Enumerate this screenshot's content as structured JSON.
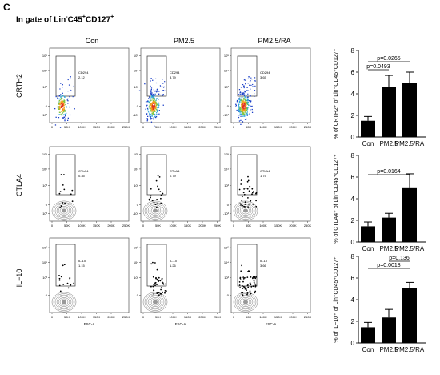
{
  "figure": {
    "panel_letter": "C",
    "gate_title_prefix": "In gate of Lin",
    "gate_title_sup1": "-",
    "gate_title_mid": "C45",
    "gate_title_sup2": "+",
    "gate_title_mid2": "CD127",
    "gate_title_sup3": "+"
  },
  "flow": {
    "columns": [
      "Con",
      "PM2.5",
      "PM2.5/RA"
    ],
    "rows": [
      "CRTH2",
      "CTLA4",
      "IL−10"
    ],
    "x_axis_label": "FSC-A",
    "x_ticks": [
      "0",
      "50K",
      "100K",
      "150K",
      "200K",
      "250K"
    ],
    "y_ticks_rows": [
      [
        "10⁵",
        "10⁴",
        "10³",
        "0",
        "-10³"
      ],
      [
        "10⁵",
        "10⁴",
        "10³",
        "0",
        "-10³"
      ],
      [
        "10⁵",
        "10⁴",
        "10³",
        "0"
      ]
    ],
    "gates": [
      [
        {
          "name": "CD294",
          "value": "2.12"
        },
        {
          "name": "CD294",
          "value": "3.79"
        },
        {
          "name": "CD294",
          "value": "3.65"
        }
      ],
      [
        {
          "name": "CTLA4",
          "value": "0.35"
        },
        {
          "name": "CTLA4",
          "value": "0.79"
        },
        {
          "name": "CTLA4",
          "value": "1.75"
        }
      ],
      [
        {
          "name": "IL-10",
          "value": "1.15"
        },
        {
          "name": "IL-10",
          "value": "1.26"
        },
        {
          "name": "IL-10",
          "value": "3.66"
        }
      ]
    ]
  },
  "chart_data": [
    {
      "type": "bar",
      "categories": [
        "Con",
        "PM2.5",
        "PM2.5/RA"
      ],
      "values": [
        1.5,
        4.6,
        5.0
      ],
      "errors": [
        0.4,
        1.1,
        1.0
      ],
      "ylabel": "% of CRTH2⁺ of Lin⁻CD45⁺CD127⁺",
      "ylim": [
        0,
        8
      ],
      "yticks": [
        0,
        2,
        4,
        6,
        8
      ],
      "annotations": [
        {
          "text": "p=0.0265",
          "from": "Con",
          "to": "PM2.5/RA"
        },
        {
          "text": "p=0.0493",
          "from": "Con",
          "to": "PM2.5"
        }
      ]
    },
    {
      "type": "bar",
      "categories": [
        "Con",
        "PM2.5",
        "PM2.5/RA"
      ],
      "values": [
        1.45,
        2.25,
        5.05
      ],
      "errors": [
        0.4,
        0.4,
        1.25
      ],
      "ylabel": "% of CTLA4⁺ of Lin⁻CD45⁺CD127⁺",
      "ylim": [
        0,
        8
      ],
      "yticks": [
        0,
        2,
        4,
        6,
        8
      ],
      "annotations": [
        {
          "text": "p=0.0164",
          "from": "Con",
          "to": "PM2.5/RA"
        }
      ]
    },
    {
      "type": "bar",
      "categories": [
        "Con",
        "PM2.5",
        "PM2.5/RA"
      ],
      "values": [
        1.45,
        2.35,
        5.05
      ],
      "errors": [
        0.45,
        0.75,
        0.55
      ],
      "ylabel": "% of IL−10⁺ of Lin⁻CD45⁺CD127⁺",
      "ylim": [
        0,
        8
      ],
      "yticks": [
        0,
        2,
        4,
        6,
        8
      ],
      "annotations": [
        {
          "text": "p=0.136",
          "from": "PM2.5",
          "to": "PM2.5/RA"
        },
        {
          "text": "p=0.0018",
          "from": "Con",
          "to": "PM2.5/RA"
        }
      ]
    }
  ]
}
